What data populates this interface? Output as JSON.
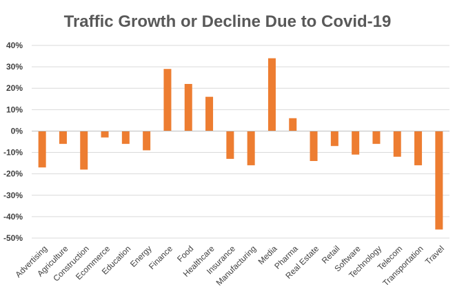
{
  "chart_data": {
    "type": "bar",
    "title": "Traffic Growth or Decline Due to Covid-19",
    "xlabel": "",
    "ylabel": "",
    "ylim": [
      -50,
      40
    ],
    "yticks": [
      40,
      30,
      20,
      10,
      0,
      -10,
      -20,
      -30,
      -40,
      -50
    ],
    "ytick_labels": [
      "40%",
      "30%",
      "20%",
      "10%",
      "0%",
      "-10%",
      "-20%",
      "-30%",
      "-40%",
      "-50%"
    ],
    "grid": true,
    "legend": "none",
    "bar_color": "#ED7D31",
    "categories": [
      "Advertising",
      "Agriculture",
      "Construction",
      "Ecommerce",
      "Education",
      "Energy",
      "Finance",
      "Food",
      "Healthcare",
      "Insurance",
      "Manufacturing",
      "Media",
      "Pharma",
      "Real Estate",
      "Retail",
      "Software",
      "Technology",
      "Telecom",
      "Transportation",
      "Travel"
    ],
    "values": [
      -17,
      -6,
      -18,
      -3,
      -6,
      -9,
      29,
      22,
      16,
      -13,
      -16,
      34,
      6,
      -14,
      -7,
      -11,
      -6,
      -12,
      -16,
      -46
    ]
  }
}
